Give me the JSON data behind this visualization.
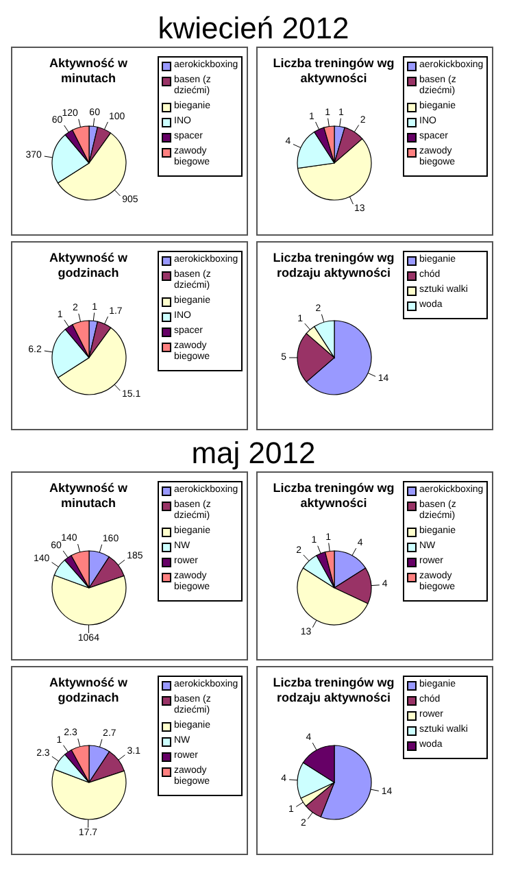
{
  "chart_data": [
    {
      "type": "pie",
      "title": "Aktywność w minutach",
      "annotations": [
        "kwiecień 2012"
      ],
      "categories": [
        "aerokickboxing",
        "basen (z dziećmi)",
        "bieganie",
        "INO",
        "spacer",
        "zawody biegowe"
      ],
      "values": [
        60,
        100,
        905,
        370,
        60,
        120
      ],
      "colors": [
        "#9999ff",
        "#993366",
        "#ffffcc",
        "#ccffff",
        "#660066",
        "#ff8080"
      ],
      "data_labels": true,
      "legend": "right"
    },
    {
      "type": "pie",
      "title": "Liczba treningów wg aktywności",
      "categories": [
        "aerokickboxing",
        "basen (z dziećmi)",
        "bieganie",
        "INO",
        "spacer",
        "zawody biegowe"
      ],
      "values": [
        1,
        2,
        13,
        4,
        1,
        1
      ],
      "colors": [
        "#9999ff",
        "#993366",
        "#ffffcc",
        "#ccffff",
        "#660066",
        "#ff8080"
      ],
      "data_labels": true,
      "legend": "right"
    },
    {
      "type": "pie",
      "title": "Aktywność w godzinach",
      "categories": [
        "aerokickboxing",
        "basen (z dziećmi)",
        "bieganie",
        "INO",
        "spacer",
        "zawody biegowe"
      ],
      "values": [
        1,
        1.7,
        15.1,
        6.2,
        1,
        2
      ],
      "colors": [
        "#9999ff",
        "#993366",
        "#ffffcc",
        "#ccffff",
        "#660066",
        "#ff8080"
      ],
      "data_labels": true,
      "legend": "right"
    },
    {
      "type": "pie",
      "title": "Liczba treningów wg rodzaju aktywności",
      "categories": [
        "bieganie",
        "chód",
        "sztuki walki",
        "woda"
      ],
      "values": [
        14,
        5,
        1,
        2
      ],
      "colors": [
        "#9999ff",
        "#993366",
        "#ffffcc",
        "#ccffff"
      ],
      "data_labels": true,
      "legend": "right"
    },
    {
      "type": "pie",
      "title": "Aktywność w minutach",
      "annotations": [
        "maj 2012"
      ],
      "categories": [
        "aerokickboxing",
        "basen (z dziećmi)",
        "bieganie",
        "NW",
        "rower",
        "zawody biegowe"
      ],
      "values": [
        160,
        185,
        1064,
        140,
        60,
        140
      ],
      "colors": [
        "#9999ff",
        "#993366",
        "#ffffcc",
        "#ccffff",
        "#660066",
        "#ff8080"
      ],
      "data_labels": true,
      "legend": "right"
    },
    {
      "type": "pie",
      "title": "Liczba treningów wg aktywności",
      "categories": [
        "aerokickboxing",
        "basen (z dziećmi)",
        "bieganie",
        "NW",
        "rower",
        "zawody biegowe"
      ],
      "values": [
        4,
        4,
        13,
        2,
        1,
        1
      ],
      "colors": [
        "#9999ff",
        "#993366",
        "#ffffcc",
        "#ccffff",
        "#660066",
        "#ff8080"
      ],
      "data_labels": true,
      "legend": "right"
    },
    {
      "type": "pie",
      "title": "Aktywność w godzinach",
      "categories": [
        "aerokickboxing",
        "basen (z dziećmi)",
        "bieganie",
        "NW",
        "rower",
        "zawody biegowe"
      ],
      "values": [
        2.7,
        3.1,
        17.7,
        2.3,
        1,
        2.3
      ],
      "colors": [
        "#9999ff",
        "#993366",
        "#ffffcc",
        "#ccffff",
        "#660066",
        "#ff8080"
      ],
      "data_labels": true,
      "legend": "right"
    },
    {
      "type": "pie",
      "title": "Liczba treningów wg rodzaju aktywności",
      "categories": [
        "bieganie",
        "chód",
        "rower",
        "sztuki walki",
        "woda"
      ],
      "values": [
        14,
        2,
        1,
        4,
        4
      ],
      "colors": [
        "#9999ff",
        "#993366",
        "#ffffcc",
        "#ccffff",
        "#660066"
      ],
      "data_labels": true,
      "legend": "right"
    }
  ]
}
